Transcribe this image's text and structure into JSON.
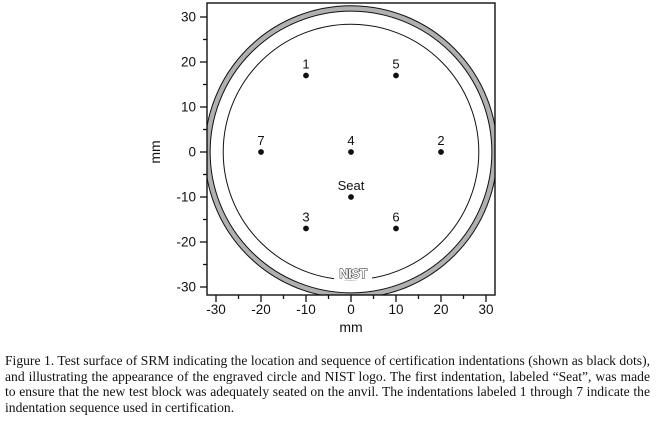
{
  "figure": {
    "caption": "Figure 1.  Test surface of SRM indicating the location and sequence of certification indentations (shown as black dots), and illustrating the appearance of the engraved circle and NIST logo.  The first indentation, labeled “Seat”, was made to ensure that the new test block was adequately seated on the anvil.  The indentations labeled 1 through 7 indicate the indentation sequence used in certification."
  },
  "chart_data": {
    "type": "scatter",
    "title": "",
    "xlabel": "mm",
    "ylabel": "mm",
    "xlim": [
      -32,
      32
    ],
    "ylim": [
      -32,
      33
    ],
    "grid": false,
    "legend": "none",
    "x_major_ticks": [
      -30,
      -20,
      -10,
      0,
      10,
      20,
      30
    ],
    "x_minor_ticks": [
      -25,
      -15,
      -5,
      5,
      15,
      25
    ],
    "y_major_ticks": [
      -30,
      -20,
      -10,
      0,
      10,
      20,
      30
    ],
    "y_minor_ticks": [
      -25,
      -15,
      -5,
      5,
      15,
      25
    ],
    "points": [
      {
        "label": "1",
        "x": -10,
        "y": 17
      },
      {
        "label": "5",
        "x": 10,
        "y": 17
      },
      {
        "label": "7",
        "x": -20,
        "y": 0
      },
      {
        "label": "4",
        "x": 0,
        "y": 0
      },
      {
        "label": "2",
        "x": 20,
        "y": 0
      },
      {
        "label": "Seat",
        "x": 0,
        "y": -10
      },
      {
        "label": "3",
        "x": -10,
        "y": -17
      },
      {
        "label": "6",
        "x": 10,
        "y": -17
      }
    ],
    "circles": [
      {
        "name": "engraved-ring-outer-radius-mm",
        "r": 32.5
      },
      {
        "name": "engraved-ring-inner-radius-mm",
        "r": 31.3
      },
      {
        "name": "inner-thin-circle-radius-mm",
        "r": 28.4
      }
    ],
    "colors": {
      "line": "#111111",
      "ring_fill": "#b0b0b0",
      "dot": "#111111",
      "background": "#ffffff"
    },
    "logo_text": "NIST",
    "logo_position_mm": {
      "x": 0.4,
      "y": -27
    }
  }
}
